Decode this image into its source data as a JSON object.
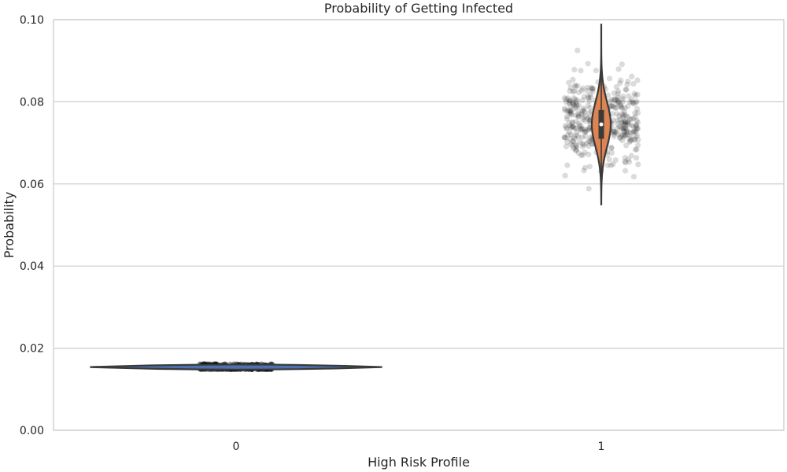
{
  "chart_data": {
    "type": "violin",
    "title": "Probability of Getting Infected",
    "xlabel": "High Risk Profile",
    "ylabel": "Probability",
    "categories": [
      "0",
      "1"
    ],
    "ylim": [
      0.0,
      0.1
    ],
    "yticks": [
      0.0,
      0.02,
      0.04,
      0.06,
      0.08,
      0.1
    ],
    "ytick_labels": [
      "0.00",
      "0.02",
      "0.04",
      "0.06",
      "0.08",
      "0.10"
    ],
    "grid": "horizontal",
    "legend": "none",
    "series": [
      {
        "category": "0",
        "color": "#4c72b0",
        "min": 0.0149,
        "max": 0.0161,
        "q1": 0.0152,
        "median": 0.0154,
        "q3": 0.0156,
        "mean": 0.0154,
        "spread": 0.0004
      },
      {
        "category": "1",
        "color": "#dd8452",
        "min": 0.055,
        "max": 0.099,
        "q1": 0.071,
        "median": 0.0745,
        "q3": 0.078,
        "mean": 0.0745,
        "spread": 0.0055
      }
    ],
    "strip_color": "#000000"
  }
}
